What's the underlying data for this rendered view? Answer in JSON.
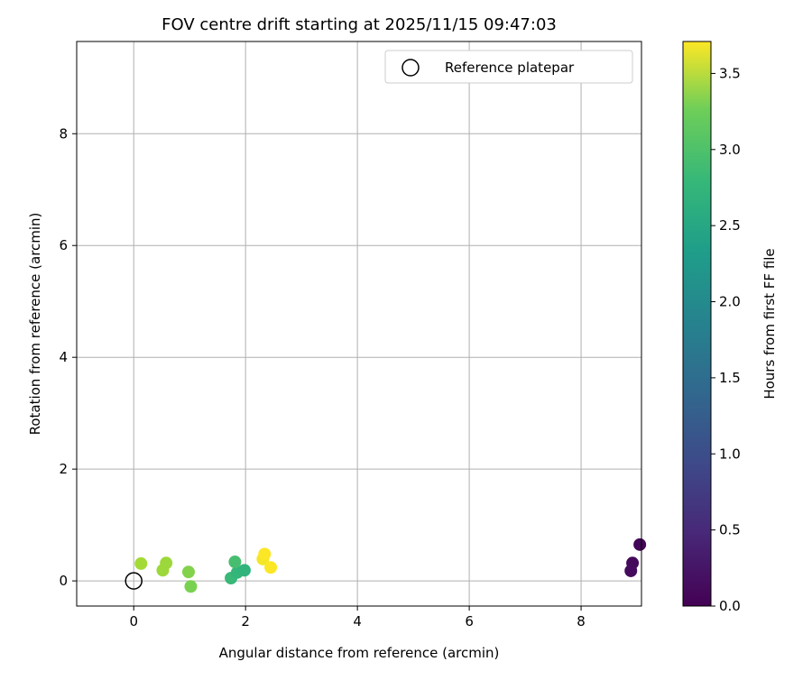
{
  "chart_data": {
    "type": "scatter",
    "title": "FOV centre drift starting at 2025/11/15 09:47:03",
    "xlabel": "Angular distance from reference (arcmin)",
    "ylabel": "Rotation from reference (arcmin)",
    "xlim": [
      -1.02,
      9.08
    ],
    "ylim": [
      -0.45,
      9.65
    ],
    "xticks": [
      0,
      2,
      4,
      6,
      8
    ],
    "yticks": [
      0,
      2,
      4,
      6,
      8
    ],
    "grid": true,
    "legend": {
      "placement": "top-right",
      "entries": [
        "Reference platepar"
      ]
    },
    "reference_point": {
      "x": 0,
      "y": 0
    },
    "colorbar": {
      "label": "Hours from first FF file",
      "range": [
        0,
        3.71
      ],
      "ticks": [
        0.0,
        0.5,
        1.0,
        1.5,
        2.0,
        2.5,
        3.0,
        3.5
      ]
    },
    "points": [
      {
        "x": 9.05,
        "y": 0.65,
        "hours": 0.05
      },
      {
        "x": 8.92,
        "y": 0.32,
        "hours": 0.08
      },
      {
        "x": 8.89,
        "y": 0.18,
        "hours": 0.1
      },
      {
        "x": 1.74,
        "y": 0.05,
        "hours": 2.5
      },
      {
        "x": 1.85,
        "y": 0.15,
        "hours": 2.45
      },
      {
        "x": 1.98,
        "y": 0.19,
        "hours": 2.4
      },
      {
        "x": 1.81,
        "y": 0.34,
        "hours": 2.6
      },
      {
        "x": 1.02,
        "y": -0.1,
        "hours": 2.95
      },
      {
        "x": 0.98,
        "y": 0.16,
        "hours": 3.0
      },
      {
        "x": 0.52,
        "y": 0.19,
        "hours": 3.15
      },
      {
        "x": 0.58,
        "y": 0.32,
        "hours": 3.15
      },
      {
        "x": 0.13,
        "y": 0.31,
        "hours": 3.2
      },
      {
        "x": 2.31,
        "y": 0.39,
        "hours": 3.65
      },
      {
        "x": 2.34,
        "y": 0.48,
        "hours": 3.7
      },
      {
        "x": 2.45,
        "y": 0.24,
        "hours": 3.7
      }
    ]
  }
}
